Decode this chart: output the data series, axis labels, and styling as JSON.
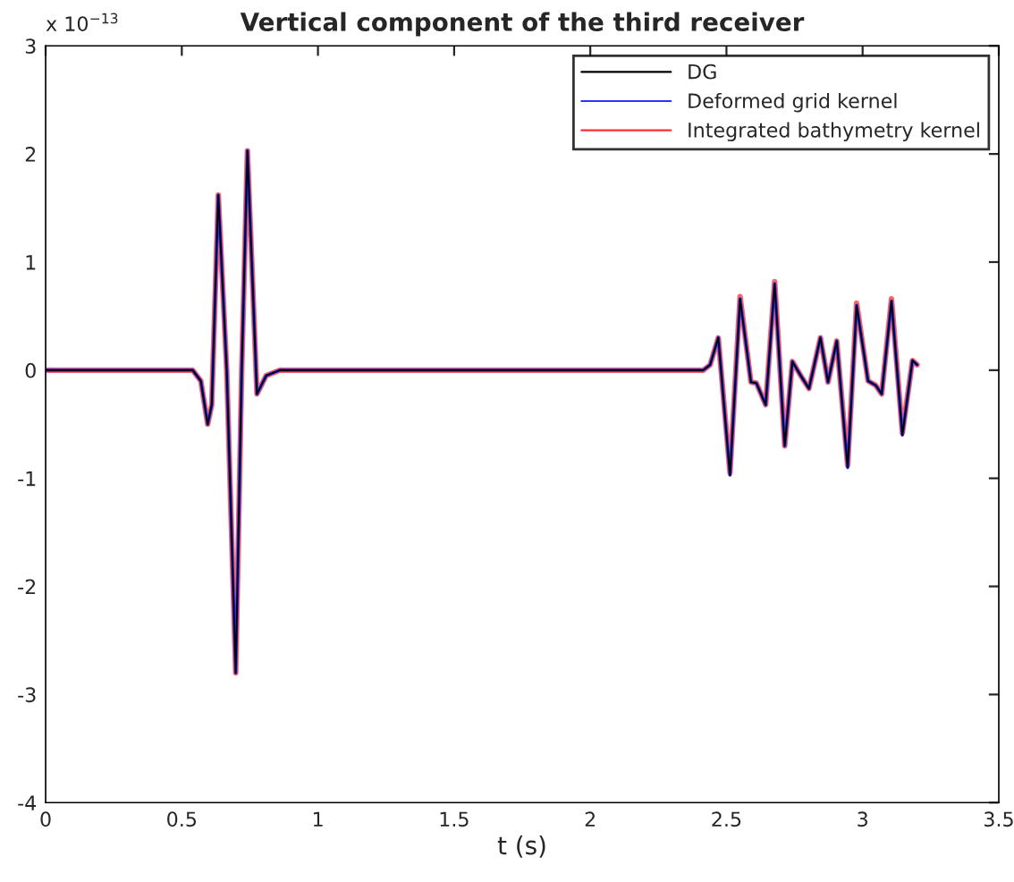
{
  "chart_data": {
    "type": "line",
    "title": "Vertical component of the third receiver",
    "xlabel": "t (s)",
    "annotations": [
      "x 10$^{−13}$"
    ],
    "x": [
      0,
      0.54,
      0.57,
      0.595,
      0.61,
      0.634,
      0.665,
      0.698,
      0.72,
      0.741,
      0.776,
      0.81,
      0.86,
      2.415,
      2.44,
      2.47,
      2.513,
      2.55,
      2.59,
      2.61,
      2.644,
      2.677,
      2.714,
      2.742,
      2.775,
      2.803,
      2.845,
      2.873,
      2.905,
      2.945,
      2.978,
      3.02,
      3.048,
      3.07,
      3.106,
      3.146,
      3.183,
      3.2
    ],
    "series": [
      {
        "name": "Integrated bathymetry kernel",
        "color": "#ff3030",
        "values": [
          0,
          0,
          -0.1,
          -0.5,
          -0.32,
          1.62,
          0,
          -2.8,
          0,
          2.03,
          -0.22,
          -0.05,
          0,
          0,
          0.05,
          0.3,
          -0.95,
          0.68,
          -0.11,
          -0.12,
          -0.32,
          0.82,
          -0.7,
          0.08,
          -0.06,
          -0.17,
          0.3,
          -0.11,
          0.27,
          -0.88,
          0.62,
          -0.1,
          -0.14,
          -0.22,
          0.66,
          -0.58,
          0.09,
          0.05
        ]
      },
      {
        "name": "Deformed grid kernel",
        "color": "#3030ff",
        "values": [
          0,
          0,
          -0.1,
          -0.5,
          -0.32,
          1.62,
          0,
          -2.8,
          0,
          2.03,
          -0.22,
          -0.05,
          0,
          0,
          0.05,
          0.3,
          -0.97,
          0.66,
          -0.11,
          -0.12,
          -0.32,
          0.8,
          -0.7,
          0.08,
          -0.06,
          -0.17,
          0.3,
          -0.11,
          0.27,
          -0.9,
          0.6,
          -0.1,
          -0.14,
          -0.22,
          0.64,
          -0.6,
          0.09,
          0.05
        ]
      },
      {
        "name": "DG",
        "color": "#000000",
        "values": [
          0,
          0,
          -0.1,
          -0.5,
          -0.32,
          1.62,
          0,
          -2.8,
          0,
          2.03,
          -0.22,
          -0.05,
          0,
          0,
          0.05,
          0.3,
          -0.97,
          0.66,
          -0.11,
          -0.12,
          -0.32,
          0.8,
          -0.7,
          0.08,
          -0.06,
          -0.17,
          0.3,
          -0.11,
          0.27,
          -0.9,
          0.6,
          -0.1,
          -0.14,
          -0.22,
          0.64,
          -0.6,
          0.09,
          0.05
        ]
      }
    ],
    "xlim": [
      0,
      3.5
    ],
    "xticks": [
      0,
      0.5,
      1,
      1.5,
      2,
      2.5,
      3,
      3.5
    ],
    "ylim": [
      -4,
      3
    ],
    "yticks": [
      -4,
      -3,
      -2,
      -1,
      0,
      1,
      2,
      3
    ],
    "legend": "top right",
    "grid": false,
    "marker": "none",
    "line_style": "solid"
  }
}
